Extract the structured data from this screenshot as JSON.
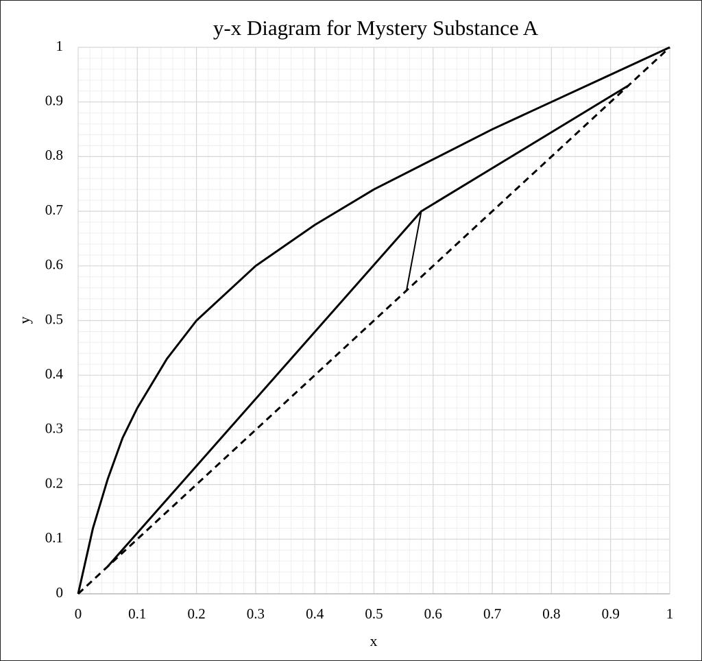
{
  "chart_data": {
    "type": "line",
    "title": "y-x Diagram for Mystery Substance A",
    "x_label": "x",
    "y_label": "y",
    "xlim": [
      0,
      1
    ],
    "ylim": [
      0,
      1
    ],
    "xticks": [
      0,
      0.1,
      0.2,
      0.3,
      0.4,
      0.5,
      0.6,
      0.7,
      0.8,
      0.9,
      1
    ],
    "yticks": [
      0,
      0.1,
      0.2,
      0.3,
      0.4,
      0.5,
      0.6,
      0.7,
      0.8,
      0.9,
      1
    ],
    "grid": true,
    "minor_grid": true,
    "series": [
      {
        "color": "#000000",
        "dashed": false,
        "linewidth": 3,
        "x": [
          0,
          0.025,
          0.05,
          0.075,
          0.1,
          0.15,
          0.2,
          0.3,
          0.4,
          0.5,
          0.6,
          0.7,
          0.8,
          0.9,
          1
        ],
        "values": [
          0,
          0.12,
          0.21,
          0.285,
          0.34,
          0.43,
          0.5,
          0.6,
          0.675,
          0.74,
          0.795,
          0.85,
          0.9,
          0.95,
          1
        ]
      },
      {
        "color": "#000000",
        "dashed": false,
        "linewidth": 3,
        "x": [
          0.05,
          0.58,
          0.93
        ],
        "values": [
          0.05,
          0.7,
          0.93
        ]
      },
      {
        "color": "#000000",
        "dashed": false,
        "linewidth": 2,
        "x": [
          0.555,
          0.58
        ],
        "values": [
          0.555,
          0.7
        ]
      },
      {
        "color": "#000000",
        "dashed": true,
        "linewidth": 3,
        "x": [
          0,
          1
        ],
        "values": [
          0,
          1
        ]
      }
    ]
  }
}
